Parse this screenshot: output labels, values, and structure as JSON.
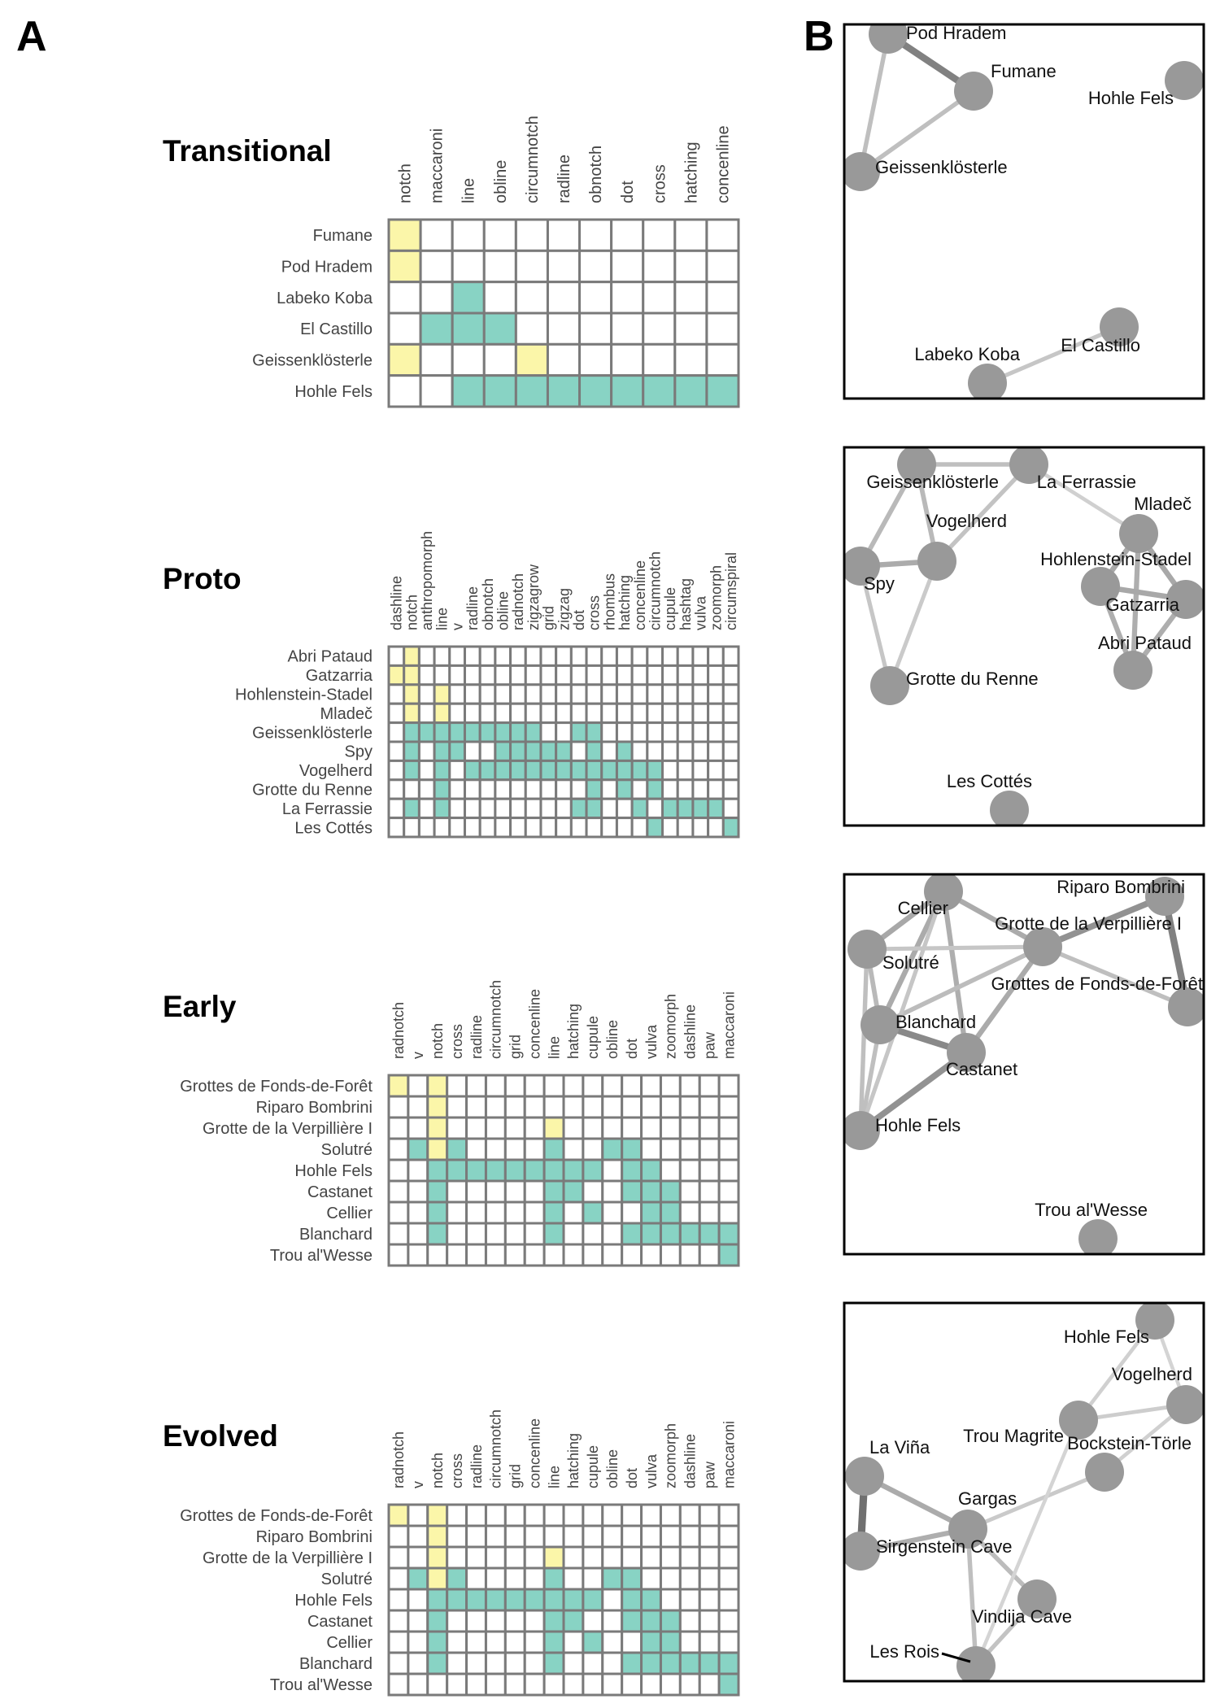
{
  "panel_labels": {
    "a": "A",
    "b": "B"
  },
  "colors": {
    "notch_yellow": "#fbf6a9",
    "teal": "#88d3c4",
    "empty": "#ffffff",
    "grid": "#7a7a7a",
    "node": "#999999",
    "frame": "#000000"
  },
  "matrices": [
    {
      "title": "Transitional",
      "columns": [
        "notch",
        "maccaroni",
        "line",
        "obline",
        "circumnotch",
        "radline",
        "obnotch",
        "dot",
        "cross",
        "hatching",
        "concenline"
      ],
      "rows": [
        "Fumane",
        "Pod Hradem",
        "Labeko Koba",
        "El Castillo",
        "Geissenklösterle",
        "Hohle Fels"
      ],
      "yellow": [
        [
          0,
          0
        ],
        [
          1,
          0
        ],
        [
          4,
          0
        ],
        [
          4,
          4
        ]
      ],
      "teal": [
        [
          2,
          2
        ],
        [
          3,
          1
        ],
        [
          3,
          2
        ],
        [
          3,
          3
        ],
        [
          5,
          2
        ],
        [
          5,
          3
        ],
        [
          5,
          4
        ],
        [
          5,
          5
        ],
        [
          5,
          6
        ],
        [
          5,
          7
        ],
        [
          5,
          8
        ],
        [
          5,
          9
        ],
        [
          5,
          10
        ]
      ]
    },
    {
      "title": "Proto",
      "columns": [
        "dashline",
        "notch",
        "anthropomorph",
        "line",
        "v",
        "radline",
        "obnotch",
        "obline",
        "radnotch",
        "zigzagrow",
        "grid",
        "zigzag",
        "dot",
        "cross",
        "rhombus",
        "hatching",
        "concenline",
        "circumnotch",
        "cupule",
        "hashtag",
        "vulva",
        "zoomorph",
        "circumspiral"
      ],
      "rows": [
        "Abri Pataud",
        "Gatzarria",
        "Hohlenstein-Stadel",
        "Mladeč",
        "Geissenklösterle",
        "Spy",
        "Vogelherd",
        "Grotte du Renne",
        "La Ferrassie",
        "Les Cottés"
      ],
      "yellow": [
        [
          0,
          1
        ],
        [
          1,
          0
        ],
        [
          1,
          1
        ],
        [
          2,
          1
        ],
        [
          2,
          3
        ],
        [
          3,
          1
        ],
        [
          3,
          3
        ]
      ],
      "teal": [
        [
          4,
          1
        ],
        [
          4,
          2
        ],
        [
          4,
          3
        ],
        [
          4,
          4
        ],
        [
          4,
          5
        ],
        [
          4,
          6
        ],
        [
          4,
          7
        ],
        [
          4,
          8
        ],
        [
          4,
          9
        ],
        [
          4,
          12
        ],
        [
          4,
          13
        ],
        [
          5,
          1
        ],
        [
          5,
          3
        ],
        [
          5,
          4
        ],
        [
          5,
          7
        ],
        [
          5,
          8
        ],
        [
          5,
          9
        ],
        [
          5,
          10
        ],
        [
          5,
          11
        ],
        [
          5,
          13
        ],
        [
          5,
          15
        ],
        [
          6,
          1
        ],
        [
          6,
          3
        ],
        [
          6,
          5
        ],
        [
          6,
          6
        ],
        [
          6,
          7
        ],
        [
          6,
          8
        ],
        [
          6,
          9
        ],
        [
          6,
          10
        ],
        [
          6,
          11
        ],
        [
          6,
          12
        ],
        [
          6,
          13
        ],
        [
          6,
          14
        ],
        [
          6,
          15
        ],
        [
          6,
          16
        ],
        [
          6,
          17
        ],
        [
          7,
          3
        ],
        [
          7,
          13
        ],
        [
          7,
          15
        ],
        [
          7,
          17
        ],
        [
          8,
          1
        ],
        [
          8,
          3
        ],
        [
          8,
          12
        ],
        [
          8,
          13
        ],
        [
          8,
          16
        ],
        [
          8,
          18
        ],
        [
          8,
          19
        ],
        [
          8,
          20
        ],
        [
          8,
          21
        ],
        [
          9,
          17
        ],
        [
          9,
          22
        ]
      ]
    },
    {
      "title": "Early",
      "columns": [
        "radnotch",
        "v",
        "notch",
        "cross",
        "radline",
        "circumnotch",
        "grid",
        "concenline",
        "line",
        "hatching",
        "cupule",
        "obline",
        "dot",
        "vulva",
        "zoomorph",
        "dashline",
        "paw",
        "maccaroni"
      ],
      "rows": [
        "Grottes de Fonds-de-Forêt",
        "Riparo Bombrini",
        "Grotte de la Verpillière I",
        "Solutré",
        "Hohle Fels",
        "Castanet",
        "Cellier",
        "Blanchard",
        "Trou al'Wesse"
      ],
      "yellow": [
        [
          0,
          0
        ],
        [
          0,
          2
        ],
        [
          1,
          2
        ],
        [
          2,
          2
        ],
        [
          2,
          8
        ],
        [
          3,
          2
        ]
      ],
      "teal": [
        [
          3,
          1
        ],
        [
          3,
          3
        ],
        [
          3,
          8
        ],
        [
          3,
          11
        ],
        [
          3,
          12
        ],
        [
          4,
          2
        ],
        [
          4,
          3
        ],
        [
          4,
          4
        ],
        [
          4,
          5
        ],
        [
          4,
          6
        ],
        [
          4,
          7
        ],
        [
          4,
          8
        ],
        [
          4,
          9
        ],
        [
          4,
          10
        ],
        [
          4,
          12
        ],
        [
          4,
          13
        ],
        [
          5,
          2
        ],
        [
          5,
          8
        ],
        [
          5,
          9
        ],
        [
          5,
          12
        ],
        [
          5,
          13
        ],
        [
          5,
          14
        ],
        [
          6,
          2
        ],
        [
          6,
          8
        ],
        [
          6,
          10
        ],
        [
          6,
          13
        ],
        [
          6,
          14
        ],
        [
          7,
          2
        ],
        [
          7,
          8
        ],
        [
          7,
          12
        ],
        [
          7,
          13
        ],
        [
          7,
          14
        ],
        [
          7,
          15
        ],
        [
          7,
          16
        ],
        [
          7,
          17
        ],
        [
          8,
          17
        ]
      ]
    },
    {
      "title": "Evolved",
      "columns": [
        "radnotch",
        "v",
        "notch",
        "cross",
        "radline",
        "circumnotch",
        "grid",
        "concenline",
        "line",
        "hatching",
        "cupule",
        "obline",
        "dot",
        "vulva",
        "zoomorph",
        "dashline",
        "paw",
        "maccaroni"
      ],
      "rows": [
        "Grottes de Fonds-de-Forêt",
        "Riparo Bombrini",
        "Grotte de la Verpillière I",
        "Solutré",
        "Hohle Fels",
        "Castanet",
        "Cellier",
        "Blanchard",
        "Trou al'Wesse"
      ],
      "yellow": [
        [
          0,
          0
        ],
        [
          0,
          2
        ],
        [
          1,
          2
        ],
        [
          2,
          2
        ],
        [
          2,
          8
        ],
        [
          3,
          2
        ]
      ],
      "teal": [
        [
          3,
          1
        ],
        [
          3,
          3
        ],
        [
          3,
          8
        ],
        [
          3,
          11
        ],
        [
          3,
          12
        ],
        [
          4,
          2
        ],
        [
          4,
          3
        ],
        [
          4,
          4
        ],
        [
          4,
          5
        ],
        [
          4,
          6
        ],
        [
          4,
          7
        ],
        [
          4,
          8
        ],
        [
          4,
          9
        ],
        [
          4,
          10
        ],
        [
          4,
          12
        ],
        [
          4,
          13
        ],
        [
          5,
          2
        ],
        [
          5,
          8
        ],
        [
          5,
          9
        ],
        [
          5,
          12
        ],
        [
          5,
          13
        ],
        [
          5,
          14
        ],
        [
          6,
          2
        ],
        [
          6,
          8
        ],
        [
          6,
          10
        ],
        [
          6,
          13
        ],
        [
          6,
          14
        ],
        [
          7,
          2
        ],
        [
          7,
          8
        ],
        [
          7,
          12
        ],
        [
          7,
          13
        ],
        [
          7,
          14
        ],
        [
          7,
          15
        ],
        [
          7,
          16
        ],
        [
          7,
          17
        ],
        [
          8,
          17
        ]
      ]
    }
  ],
  "networks": [
    {
      "nodes": [
        "Pod Hradem",
        "Fumane",
        "Hohle Fels",
        "Geissenklösterle",
        "El Castillo",
        "Labeko Koba"
      ],
      "edges": [
        [
          "Pod Hradem",
          "Fumane",
          0.55
        ],
        [
          "Pod Hradem",
          "Geissenklösterle",
          0.18
        ],
        [
          "Fumane",
          "Geissenklösterle",
          0.18
        ],
        [
          "Labeko Koba",
          "El Castillo",
          0.14
        ]
      ]
    },
    {
      "nodes": [
        "Geissenklösterle",
        "La Ferrassie",
        "Vogelherd",
        "Spy",
        "Mladeč",
        "Hohlenstein-Stadel",
        "Gatzarria",
        "Abri Pataud",
        "Grotte du Renne",
        "Les Cottés"
      ],
      "edges": [
        [
          "Geissenklösterle",
          "La Ferrassie",
          0.18
        ],
        [
          "Geissenklösterle",
          "Vogelherd",
          0.22
        ],
        [
          "Geissenklösterle",
          "Spy",
          0.22
        ],
        [
          "Spy",
          "Vogelherd",
          0.3
        ],
        [
          "La Ferrassie",
          "Vogelherd",
          0.16
        ],
        [
          "Spy",
          "Grotte du Renne",
          0.14
        ],
        [
          "Vogelherd",
          "Grotte du Renne",
          0.12
        ],
        [
          "La Ferrassie",
          "Mladeč",
          0.08
        ],
        [
          "Mladeč",
          "Hohlenstein-Stadel",
          0.32
        ],
        [
          "Mladeč",
          "Gatzarria",
          0.32
        ],
        [
          "Mladeč",
          "Abri Pataud",
          0.28
        ],
        [
          "Hohlenstein-Stadel",
          "Gatzarria",
          0.32
        ],
        [
          "Hohlenstein-Stadel",
          "Abri Pataud",
          0.28
        ],
        [
          "Gatzarria",
          "Abri Pataud",
          0.28
        ]
      ]
    },
    {
      "nodes": [
        "Cellier",
        "Riparo Bombrini",
        "Grotte de la Verpillière I",
        "Solutré",
        "Grottes de Fonds-de-Forêt",
        "Blanchard",
        "Castanet",
        "Hohle Fels",
        "Trou al'Wesse"
      ],
      "edges": [
        [
          "Cellier",
          "Solutré",
          0.32
        ],
        [
          "Cellier",
          "Grotte de la Verpillière I",
          0.3
        ],
        [
          "Cellier",
          "Blanchard",
          0.3
        ],
        [
          "Cellier",
          "Castanet",
          0.28
        ],
        [
          "Riparo Bombrini",
          "Grotte de la Verpillière I",
          0.45
        ],
        [
          "Riparo Bombrini",
          "Grottes de Fonds-de-Forêt",
          0.55
        ],
        [
          "Grotte de la Verpillière I",
          "Grottes de Fonds-de-Forêt",
          0.18
        ],
        [
          "Solutré",
          "Grotte de la Verpillière I",
          0.14
        ],
        [
          "Solutré",
          "Blanchard",
          0.22
        ],
        [
          "Solutré",
          "Hohle Fels",
          0.18
        ],
        [
          "Blanchard",
          "Castanet",
          0.5
        ],
        [
          "Blanchard",
          "Grotte de la Verpillière I",
          0.2
        ],
        [
          "Castanet",
          "Grotte de la Verpillière I",
          0.3
        ],
        [
          "Castanet",
          "Hohle Fels",
          0.45
        ],
        [
          "Blanchard",
          "Hohle Fels",
          0.18
        ],
        [
          "Cellier",
          "Hohle Fels",
          0.14
        ]
      ]
    },
    {
      "nodes": [
        "Hohle Fels",
        "Vogelherd",
        "Trou Magrite",
        "Bockstein-Törle",
        "La Viña",
        "Gargas",
        "Sirgenstein Cave",
        "Vindija Cave",
        "Les Rois"
      ],
      "edges": [
        [
          "La Viña",
          "Sirgenstein Cave",
          0.65
        ],
        [
          "La Viña",
          "Gargas",
          0.3
        ],
        [
          "Gargas",
          "Sirgenstein Cave",
          0.28
        ],
        [
          "Gargas",
          "Vindija Cave",
          0.2
        ],
        [
          "Gargas",
          "Les Rois",
          0.18
        ],
        [
          "Gargas",
          "Bockstein-Törle",
          0.12
        ],
        [
          "Trou Magrite",
          "Vogelherd",
          0.1
        ],
        [
          "Trou Magrite",
          "Hohle Fels",
          0.08
        ],
        [
          "Vogelherd",
          "Hohle Fels",
          0.06
        ],
        [
          "Vogelherd",
          "Bockstein-Törle",
          0.08
        ],
        [
          "Vindija Cave",
          "Les Rois",
          0.16
        ],
        [
          "Les Rois",
          "Trou Magrite",
          0.06
        ]
      ]
    }
  ]
}
